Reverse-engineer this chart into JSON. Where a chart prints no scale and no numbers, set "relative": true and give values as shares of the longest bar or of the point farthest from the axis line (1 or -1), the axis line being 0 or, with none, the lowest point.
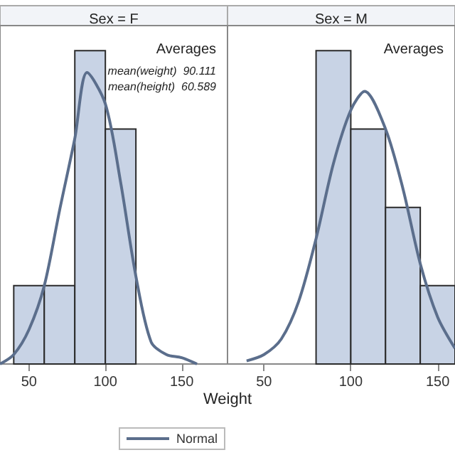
{
  "chart_data": [
    {
      "type": "histogram",
      "title": "Sex = F",
      "xlabel": "Weight",
      "relative": true,
      "bins": [
        40,
        60,
        80,
        100,
        120
      ],
      "values": [
        0.25,
        0.25,
        1,
        0.75
      ],
      "color": "#c8d3e5",
      "xlim": [
        31,
        180
      ],
      "xticks": [
        50,
        100,
        150
      ],
      "grid": false,
      "legend": "bottom",
      "annotations": [
        "Averages",
        "mean(weight)  90.111",
        "mean(height)  60.589"
      ],
      "series": [
        {
          "type": "line",
          "name": "Normal",
          "color": "#5b6e8c",
          "x": [
            31,
            40,
            50,
            60,
            70,
            80,
            88,
            100,
            110,
            120,
            130,
            140,
            150,
            160
          ],
          "values": [
            0.0,
            0.03,
            0.11,
            0.25,
            0.49,
            0.72,
            0.93,
            0.83,
            0.58,
            0.28,
            0.07,
            0.03,
            0.02,
            0.0
          ]
        }
      ]
    },
    {
      "type": "histogram",
      "title": "Sex = M",
      "relative": true,
      "bins": [
        80,
        100,
        120,
        140,
        160
      ],
      "values": [
        1,
        0.75,
        0.5,
        0.25
      ],
      "color": "#c8d3e5",
      "xlim": [
        29,
        160
      ],
      "xticks": [
        50,
        100,
        150
      ],
      "grid": false,
      "annotations": [
        "Averages"
      ],
      "series": [
        {
          "type": "line",
          "color": "#5b6e8c",
          "x": [
            40,
            50,
            60,
            70,
            80,
            90,
            100,
            108,
            120,
            130,
            140,
            150,
            160
          ],
          "values": [
            0.01,
            0.03,
            0.08,
            0.2,
            0.4,
            0.64,
            0.81,
            0.87,
            0.75,
            0.56,
            0.32,
            0.15,
            0.05
          ]
        }
      ]
    }
  ]
}
